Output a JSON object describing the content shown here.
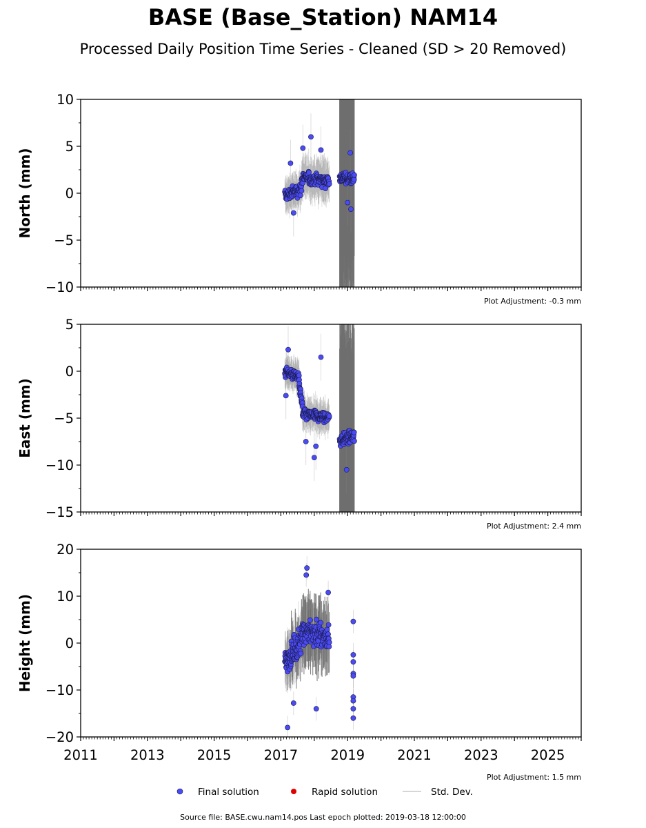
{
  "header": {
    "title": "BASE (Base_Station) NAM14",
    "subtitle": "Processed Daily Position Time Series - Cleaned (SD > 20 Removed)"
  },
  "footer": {
    "source": "Source file: BASE.cwu.nam14.pos  Last epoch plotted: 2019-03-18 12:00:00"
  },
  "legend": {
    "final_label": "Final solution",
    "rapid_label": "Rapid solution",
    "std_label": "Std. Dev."
  },
  "colors": {
    "final": "#4b4bf5",
    "final_edge": "#1a1a4a",
    "rapid": "#e00000",
    "std": "#6e6e6e",
    "std_light": "#c8c8c8"
  },
  "chart_data": [
    {
      "type": "scatter",
      "name": "north",
      "ylabel": "North (mm)",
      "ylim": [
        -10,
        10
      ],
      "yticks": [
        -10,
        -5,
        0,
        5,
        10
      ],
      "xlim": [
        2011,
        2026
      ],
      "adjustment": "Plot Adjustment: -0.3 mm",
      "clusters": [
        {
          "start": 2017.12,
          "end": 2017.62,
          "values_start": -0.3,
          "values_end": 0.5,
          "spread": 0.9,
          "std": 1.8,
          "n": 70
        },
        {
          "start": 2017.62,
          "end": 2018.45,
          "values_start": 1.6,
          "values_end": 1.4,
          "spread": 0.9,
          "std": 2.2,
          "n": 110
        },
        {
          "start": 2018.76,
          "end": 2019.2,
          "values_start": 1.7,
          "values_end": 1.5,
          "spread": 0.8,
          "std": 14.0,
          "n": 70
        }
      ],
      "outliers": [
        {
          "x": 2017.29,
          "y": 3.2
        },
        {
          "x": 2017.66,
          "y": 4.8
        },
        {
          "x": 2017.9,
          "y": 6.0
        },
        {
          "x": 2018.2,
          "y": 4.6
        },
        {
          "x": 2019.08,
          "y": 4.3
        },
        {
          "x": 2019.1,
          "y": -1.7
        },
        {
          "x": 2017.38,
          "y": -2.1
        },
        {
          "x": 2019.0,
          "y": -1.0
        }
      ]
    },
    {
      "type": "scatter",
      "name": "east",
      "ylabel": "East (mm)",
      "ylim": [
        -15,
        5
      ],
      "yticks": [
        -15,
        -10,
        -5,
        0,
        5
      ],
      "xlim": [
        2011,
        2026
      ],
      "adjustment": "Plot Adjustment: 2.4 mm",
      "clusters": [
        {
          "start": 2017.12,
          "end": 2017.55,
          "values_start": 0.0,
          "values_end": -0.6,
          "spread": 0.8,
          "std": 1.6,
          "n": 70
        },
        {
          "start": 2017.55,
          "end": 2017.65,
          "values_start": -1.5,
          "values_end": -3.8,
          "spread": 0.7,
          "std": 1.6,
          "n": 20
        },
        {
          "start": 2017.65,
          "end": 2018.45,
          "values_start": -4.6,
          "values_end": -5.0,
          "spread": 0.8,
          "std": 1.8,
          "n": 110
        },
        {
          "start": 2018.76,
          "end": 2019.2,
          "values_start": -7.3,
          "values_end": -7.0,
          "spread": 0.9,
          "std": 14.0,
          "n": 70
        }
      ],
      "outliers": [
        {
          "x": 2017.22,
          "y": 2.3
        },
        {
          "x": 2018.2,
          "y": 1.5
        },
        {
          "x": 2017.75,
          "y": -7.5
        },
        {
          "x": 2018.0,
          "y": -9.2
        },
        {
          "x": 2018.05,
          "y": -8.0
        },
        {
          "x": 2018.97,
          "y": -10.5
        },
        {
          "x": 2017.15,
          "y": -2.6
        }
      ]
    },
    {
      "type": "scatter",
      "name": "height",
      "ylabel": "Height (mm)",
      "ylim": [
        -20,
        20
      ],
      "yticks": [
        -20,
        -10,
        0,
        10,
        20
      ],
      "xlim": [
        2011,
        2026
      ],
      "adjustment": "Plot Adjustment: 1.5 mm",
      "xticks": [
        "2011",
        "2013",
        "2015",
        "2017",
        "2019",
        "2021",
        "2023",
        "2025"
      ],
      "clusters": [
        {
          "start": 2017.12,
          "end": 2017.6,
          "values_start": -4.0,
          "values_end": 0.0,
          "spread": 3.6,
          "std": 5.5,
          "n": 90
        },
        {
          "start": 2017.6,
          "end": 2018.45,
          "values_start": 3.0,
          "values_end": 1.0,
          "spread": 4.2,
          "std": 6.5,
          "n": 130
        }
      ],
      "outliers": [
        {
          "x": 2017.2,
          "y": -18.0
        },
        {
          "x": 2017.38,
          "y": -12.8
        },
        {
          "x": 2017.78,
          "y": 16.0
        },
        {
          "x": 2017.76,
          "y": 14.5
        },
        {
          "x": 2018.06,
          "y": -14.0
        },
        {
          "x": 2018.42,
          "y": 10.8
        },
        {
          "x": 2019.17,
          "y": 4.6
        },
        {
          "x": 2019.17,
          "y": -2.5
        },
        {
          "x": 2019.17,
          "y": -4.0
        },
        {
          "x": 2019.17,
          "y": -6.5
        },
        {
          "x": 2019.17,
          "y": -7.0
        },
        {
          "x": 2019.17,
          "y": -11.5
        },
        {
          "x": 2019.17,
          "y": -12.3
        },
        {
          "x": 2019.17,
          "y": -14.0
        },
        {
          "x": 2019.17,
          "y": -16.0
        }
      ]
    }
  ]
}
